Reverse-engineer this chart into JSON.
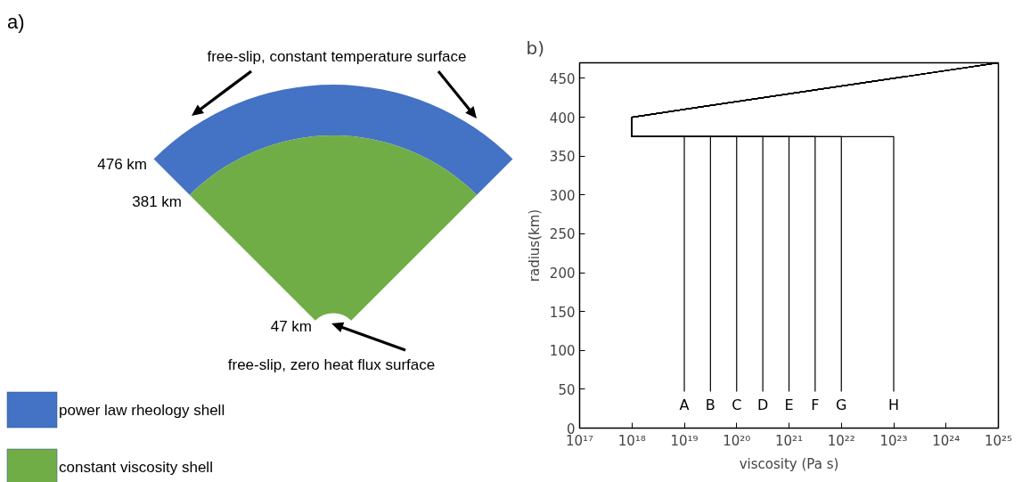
{
  "chart_data": [
    {
      "type": "other",
      "title": "a)",
      "categories": [
        "power law rheology shell",
        "constant viscosity shell"
      ],
      "colors": [
        "#4472c4",
        "#70ad47"
      ],
      "annotations": [
        "free-slip, constant temperature surface",
        "476 km",
        "381 km",
        "47 km",
        "free-slip, zero heat flux surface"
      ]
    },
    {
      "type": "line",
      "title": "b)",
      "xlabel": "viscosity (Pa s)",
      "ylabel": "radius(km)",
      "log": "x",
      "xlim": [
        1e+17,
        1e+25
      ],
      "ylim": [
        0,
        470
      ],
      "xticks": [
        {
          "value": 1e+17,
          "label": "10¹⁷"
        },
        {
          "value": 1e+18,
          "label": "10¹⁸"
        },
        {
          "value": 1e+19,
          "label": "10¹⁹"
        },
        {
          "value": 1e+20,
          "label": "10²⁰"
        },
        {
          "value": 1e+21,
          "label": "10²¹"
        },
        {
          "value": 1e+22,
          "label": "10²²"
        },
        {
          "value": 1e+23,
          "label": "10²³"
        },
        {
          "value": 1e+24,
          "label": "10²⁴"
        },
        {
          "value": 1e+25,
          "label": "10²⁵"
        }
      ],
      "yticks": [
        0,
        50,
        100,
        150,
        200,
        250,
        300,
        350,
        400,
        450
      ],
      "grid": false,
      "legend": false,
      "series": [
        {
          "name": "A",
          "color": "#000000",
          "x": [
            1e+19,
            1e+19,
            1e+18,
            1e+18,
            1e+25
          ],
          "values": [
            47,
            375,
            375,
            400,
            470
          ]
        },
        {
          "name": "B",
          "color": "#000000",
          "x": [
            3.16e+19,
            3.16e+19,
            1e+18,
            1e+18,
            1e+25
          ],
          "values": [
            47,
            375,
            375,
            400,
            470
          ]
        },
        {
          "name": "C",
          "color": "#000000",
          "x": [
            1e+20,
            1e+20,
            1e+18,
            1e+18,
            1e+25
          ],
          "values": [
            47,
            375,
            375,
            400,
            470
          ]
        },
        {
          "name": "D",
          "color": "#000000",
          "x": [
            3.16e+20,
            3.16e+20,
            1e+18,
            1e+18,
            1e+25
          ],
          "values": [
            47,
            375,
            375,
            400,
            470
          ]
        },
        {
          "name": "E",
          "color": "#000000",
          "x": [
            1e+21,
            1e+21,
            1e+18,
            1e+18,
            1e+25
          ],
          "values": [
            47,
            375,
            375,
            400,
            470
          ]
        },
        {
          "name": "F",
          "color": "#000000",
          "x": [
            3.16e+21,
            3.16e+21,
            1e+18,
            1e+18,
            1e+25
          ],
          "values": [
            47,
            375,
            375,
            400,
            470
          ]
        },
        {
          "name": "G",
          "color": "#000000",
          "x": [
            1e+22,
            1e+22,
            1e+18,
            1e+18,
            1e+25
          ],
          "values": [
            47,
            375,
            375,
            400,
            470
          ]
        },
        {
          "name": "H",
          "color": "#000000",
          "x": [
            1e+23,
            1e+23,
            1e+18,
            1e+18,
            1e+25
          ],
          "values": [
            47,
            375,
            375,
            400,
            470
          ]
        }
      ]
    }
  ]
}
